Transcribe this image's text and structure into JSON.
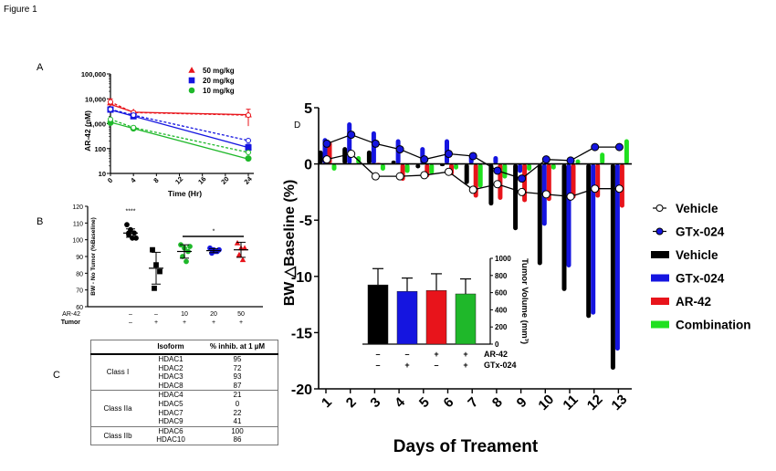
{
  "figure_title": "Figure 1",
  "panels": {
    "A": {
      "label": "A"
    },
    "B": {
      "label": "B"
    },
    "C": {
      "label": "C"
    },
    "D": {
      "label": "D"
    }
  },
  "chart_data": [
    {
      "id": "A",
      "type": "line",
      "title": "",
      "xlabel": "Time (Hr)",
      "ylabel": "AR-42 (nM)",
      "yscale": "log",
      "ylim": [
        10,
        100000
      ],
      "xlim": [
        0,
        24
      ],
      "xticks": [
        "0",
        "4",
        "8",
        "12",
        "16",
        "20",
        "24"
      ],
      "yticks": [
        "10",
        "100",
        "1,000",
        "10,000",
        "100,000"
      ],
      "legend_position": "top-right",
      "series": [
        {
          "name": "50 mg/kg",
          "color": "#e8141b",
          "marker": "triangle",
          "x": [
            0,
            4,
            24
          ],
          "y": [
            7000,
            2900,
            2300
          ],
          "err": [
            3000,
            400,
            1500
          ],
          "fit_x": [
            0,
            4,
            24
          ],
          "fit_y": [
            6000,
            2900,
            2300
          ],
          "fit_dashed_y": [
            7500,
            2800,
            2200
          ]
        },
        {
          "name": "20 mg/kg",
          "color": "#1515e0",
          "marker": "square",
          "x": [
            0,
            4,
            24
          ],
          "y": [
            3700,
            2000,
            110
          ],
          "err": [
            500,
            300,
            40
          ],
          "fit_x": [
            0,
            4,
            24
          ],
          "fit_y": [
            3600,
            2000,
            110
          ],
          "fit_dashed_y": [
            3800,
            2200,
            210
          ]
        },
        {
          "name": "10 mg/kg",
          "color": "#1fb82a",
          "marker": "circle",
          "x": [
            0,
            4,
            24
          ],
          "y": [
            1100,
            650,
            40
          ],
          "err": [
            300,
            150,
            8
          ],
          "fit_x": [
            0,
            4,
            24
          ],
          "fit_y": [
            1150,
            640,
            38
          ],
          "fit_dashed_y": [
            1500,
            700,
            70
          ]
        }
      ]
    },
    {
      "id": "B",
      "type": "scatter",
      "ylabel": "BW - No Tumor (%Baseline)",
      "ylim": [
        60,
        120
      ],
      "yticks": [
        "60",
        "70",
        "80",
        "90",
        "100",
        "110",
        "120"
      ],
      "row_labels": [
        "AR-42",
        "Tumor"
      ],
      "groups": [
        {
          "ar42": "–",
          "tumor": "–",
          "color": "#000000",
          "marker": "circle",
          "mean": 104,
          "sd": 2.5,
          "points": [
            109,
            106,
            104,
            103,
            101,
            101,
            104
          ]
        },
        {
          "ar42": "–",
          "tumor": "+",
          "color": "#000000",
          "marker": "square",
          "mean": 83,
          "sd": 9.5,
          "points": [
            94,
            85,
            81,
            71
          ]
        },
        {
          "ar42": "10",
          "tumor": "+",
          "color": "#1fb82a",
          "marker": "circle",
          "mean": 93,
          "sd": 4,
          "points": [
            97,
            95,
            93,
            90,
            87,
            96
          ]
        },
        {
          "ar42": "20",
          "tumor": "+",
          "color": "#1515e0",
          "marker": "circle",
          "mean": 93.5,
          "sd": 1.2,
          "points": [
            95,
            94,
            93,
            92,
            93,
            94
          ]
        },
        {
          "ar42": "50",
          "tumor": "+",
          "color": "#e8141b",
          "marker": "triangle",
          "mean": 94,
          "sd": 4.5,
          "points": [
            98,
            95,
            95,
            91,
            88
          ]
        }
      ],
      "annotations": [
        {
          "text": "****",
          "group": 0
        },
        {
          "text": "*",
          "span": [
            2,
            4
          ]
        }
      ]
    },
    {
      "id": "D",
      "type": "bar",
      "xlabel": "Days of Treament",
      "ylabel": "BW △Baseline  (%)",
      "ylim": [
        -20,
        5
      ],
      "yticks": [
        "5",
        "0",
        "-5",
        "-10",
        "-15",
        "-20"
      ],
      "categories": [
        "1",
        "2",
        "3",
        "4",
        "5",
        "6",
        "7",
        "8",
        "9",
        "10",
        "11",
        "12",
        "13"
      ],
      "legend_position": "right",
      "line_series": [
        {
          "name": "Vehicle",
          "marker": "open-circle",
          "color": "#000000",
          "values": [
            0.4,
            0.9,
            -1.1,
            -1.1,
            -1.0,
            -0.7,
            -2.3,
            -1.8,
            -2.5,
            -2.7,
            -2.9,
            -2.2,
            -2.2
          ]
        },
        {
          "name": "GTx-024",
          "marker": "filled-circle",
          "color": "#1515e0",
          "values": [
            1.8,
            2.6,
            1.8,
            1.3,
            0.4,
            0.9,
            0.7,
            -0.6,
            -1.3,
            0.4,
            0.3,
            1.5,
            1.5
          ]
        }
      ],
      "series": [
        {
          "name": "Vehicle",
          "color": "#000000",
          "values": [
            1.2,
            1.5,
            1.2,
            0.3,
            -0.4,
            -0.2,
            -1.8,
            -3.7,
            -5.9,
            -9.0,
            -11.3,
            -13.7,
            -18.3
          ]
        },
        {
          "name": "GTx-024",
          "color": "#1515e0",
          "values": [
            2.3,
            3.7,
            2.9,
            2.2,
            1.5,
            2.2,
            0.9,
            0.7,
            -0.8,
            -5.5,
            -9.2,
            -13.4,
            -16.6
          ]
        },
        {
          "name": "AR-42",
          "color": "#e8141b",
          "values": [
            2.0,
            0.0,
            0.1,
            -1.5,
            -1.2,
            -1.0,
            -3.0,
            -3.2,
            -3.4,
            -3.3,
            -3.1,
            -3.0,
            -3.9
          ]
        },
        {
          "name": "Combination",
          "color": "#1fe01f",
          "values": [
            -0.6,
            0.7,
            -0.6,
            -0.8,
            -0.9,
            -0.5,
            -2.1,
            -1.3,
            -0.6,
            -0.5,
            0.4,
            1.0,
            2.2
          ]
        }
      ],
      "inset": {
        "type": "bar",
        "ylabel": "Tumor Volume (mm³)",
        "ylim": [
          0,
          1000
        ],
        "yticks": [
          "0",
          "200",
          "400",
          "600",
          "800",
          "1000"
        ],
        "row_labels": [
          "AR-42",
          "GTx-024"
        ],
        "bars": [
          {
            "color": "#000000",
            "value": 690,
            "err": 190,
            "ar42": "–",
            "gtx": "–"
          },
          {
            "color": "#1515e0",
            "value": 615,
            "err": 155,
            "ar42": "–",
            "gtx": "+"
          },
          {
            "color": "#e8141b",
            "value": 625,
            "err": 195,
            "ar42": "+",
            "gtx": "–"
          },
          {
            "color": "#1fb82a",
            "value": 585,
            "err": 175,
            "ar42": "+",
            "gtx": "+"
          }
        ]
      }
    }
  ],
  "table_C": {
    "headers": [
      "",
      "Isoform",
      "% inhib. at 1 µM"
    ],
    "groups": [
      {
        "class": "Class I",
        "rows": [
          [
            "HDAC1",
            "95"
          ],
          [
            "HDAC2",
            "72"
          ],
          [
            "HDAC3",
            "93"
          ],
          [
            "HDAC8",
            "87"
          ]
        ]
      },
      {
        "class": "Class IIa",
        "rows": [
          [
            "HDAC4",
            "21"
          ],
          [
            "HDAC5",
            "0"
          ],
          [
            "HDAC7",
            "22"
          ],
          [
            "HDAC9",
            "41"
          ]
        ]
      },
      {
        "class": "Class IIb",
        "rows": [
          [
            "HDAC6",
            "100"
          ],
          [
            "HDAC10",
            "86"
          ]
        ]
      }
    ]
  }
}
